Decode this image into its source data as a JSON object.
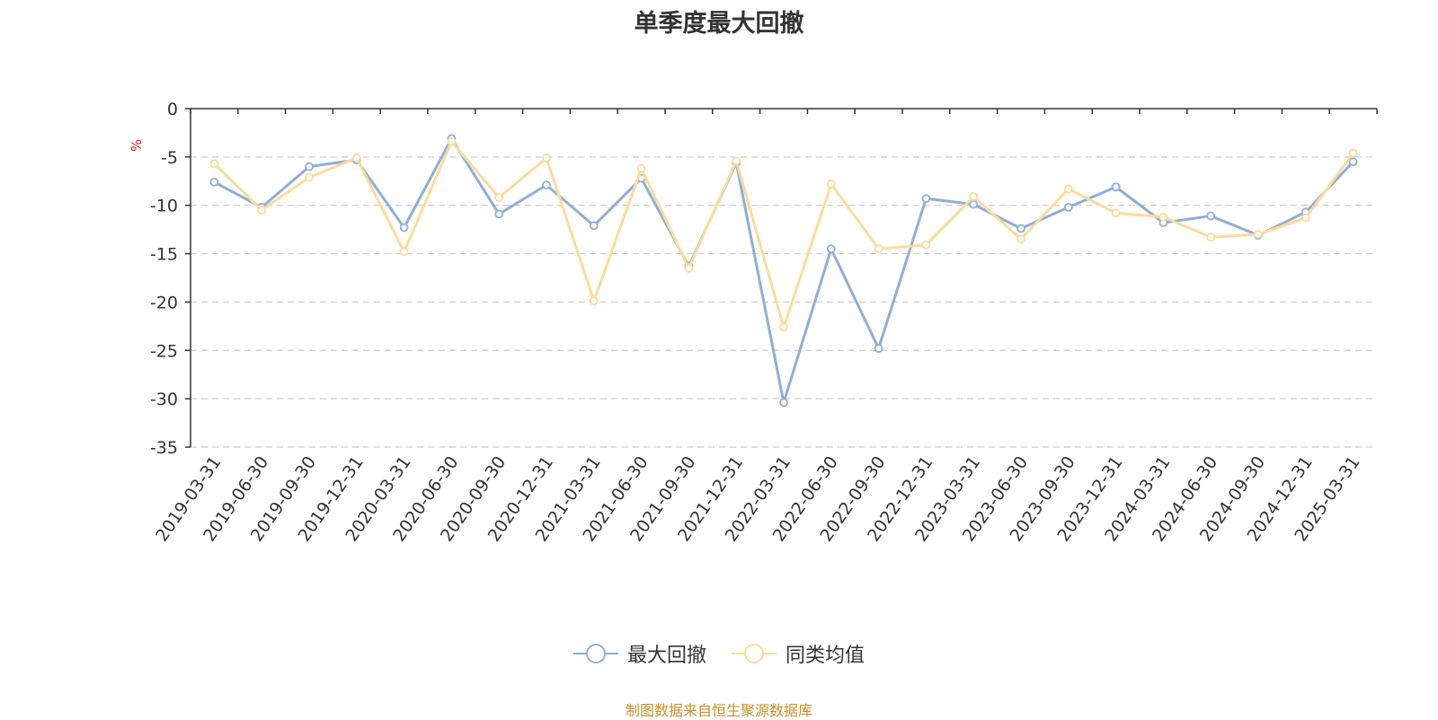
{
  "colors": {
    "series1": "#8eaedb",
    "series2": "#fcdb9b",
    "grid": "#cccccc",
    "axis": "#333333",
    "unit": "#dd2222",
    "source": "#c8902a"
  },
  "chart_data": {
    "type": "line",
    "title": "单季度最大回撤",
    "ylabel": "%",
    "ylim": [
      -35,
      0
    ],
    "yticks": [
      0,
      -5,
      -10,
      -15,
      -20,
      -25,
      -30,
      -35
    ],
    "grid": "horizontal dashed",
    "legend_position": "bottom-center",
    "categories": [
      "2019-03-31",
      "2019-06-30",
      "2019-09-30",
      "2019-12-31",
      "2020-03-31",
      "2020-06-30",
      "2020-09-30",
      "2020-12-31",
      "2021-03-31",
      "2021-06-30",
      "2021-09-30",
      "2021-12-31",
      "2022-03-31",
      "2022-06-30",
      "2022-09-30",
      "2022-12-31",
      "2023-03-31",
      "2023-06-30",
      "2023-09-30",
      "2023-12-31",
      "2024-03-31",
      "2024-06-30",
      "2024-09-30",
      "2024-12-31",
      "2025-03-31"
    ],
    "series": [
      {
        "name": "最大回撤",
        "values": [
          -7.6,
          -10.2,
          -6.0,
          -5.3,
          -12.3,
          -3.1,
          -10.9,
          -7.9,
          -12.1,
          -7.2,
          -16.3,
          -5.6,
          -30.4,
          -14.5,
          -24.8,
          -9.3,
          -9.9,
          -12.4,
          -10.2,
          -8.1,
          -11.8,
          -11.1,
          -13.1,
          -10.7,
          -5.5
        ]
      },
      {
        "name": "同类均值",
        "values": [
          -5.7,
          -10.5,
          -7.1,
          -5.1,
          -14.8,
          -3.4,
          -9.2,
          -5.1,
          -19.9,
          -6.2,
          -16.5,
          -5.4,
          -22.6,
          -7.8,
          -14.5,
          -14.1,
          -9.1,
          -13.5,
          -8.3,
          -10.8,
          -11.2,
          -13.3,
          -13.0,
          -11.3,
          -4.6
        ]
      }
    ]
  },
  "source_note": "制图数据来自恒生聚源数据库"
}
